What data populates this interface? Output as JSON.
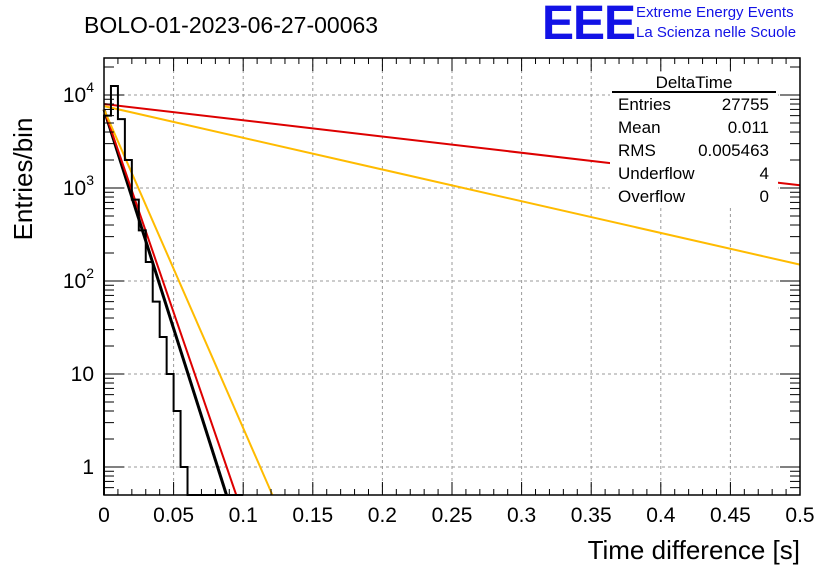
{
  "logo": {
    "mark": "EEE",
    "line1": "Extreme Energy Events",
    "line2": "La Scienza nelle Scuole",
    "color": "#1212e6"
  },
  "chart_data": {
    "type": "line",
    "title": "BOLO-01-2023-06-27-00063",
    "xlabel": "Time difference [s]",
    "ylabel": "Entries/bin",
    "xlim": [
      0,
      0.5
    ],
    "ylim": [
      0.5,
      25000
    ],
    "yscale": "log",
    "grid": true,
    "x_ticks": [
      "0",
      "0.05",
      "0.1",
      "0.15",
      "0.2",
      "0.25",
      "0.3",
      "0.35",
      "0.4",
      "0.45",
      "0.5"
    ],
    "y_ticks": [
      {
        "value": 1,
        "label": "1"
      },
      {
        "value": 10,
        "label": "10"
      },
      {
        "value": 100,
        "base": "10",
        "exp": "2"
      },
      {
        "value": 1000,
        "base": "10",
        "exp": "3"
      },
      {
        "value": 10000,
        "base": "10",
        "exp": "4"
      }
    ],
    "histogram": {
      "name": "DeltaTime",
      "bin_width": 0.005,
      "color": "#000000",
      "counts": [
        6000,
        12500,
        5500,
        2000,
        750,
        350,
        160,
        60,
        25,
        10,
        4,
        1,
        0,
        0,
        0,
        0,
        0,
        0,
        0,
        0
      ]
    },
    "fits": [
      {
        "color": "#000000",
        "x": [
          0.0,
          0.088
        ],
        "y": [
          7000,
          0.5
        ]
      },
      {
        "color": "#dd0000",
        "x": [
          0.0,
          0.095
        ],
        "y": [
          7000,
          0.5
        ]
      },
      {
        "color": "#ffbb00",
        "x": [
          0.0,
          0.121
        ],
        "y": [
          7000,
          0.5
        ]
      },
      {
        "color": "#ffbb00",
        "x": [
          0.0,
          0.5
        ],
        "y": [
          7600,
          150
        ]
      },
      {
        "color": "#dd0000",
        "x": [
          0.0,
          0.5
        ],
        "y": [
          8000,
          1070
        ]
      }
    ],
    "stats": {
      "title": "DeltaTime",
      "rows": [
        {
          "label": "Entries",
          "value": "27755"
        },
        {
          "label": "Mean",
          "value": "0.011"
        },
        {
          "label": "RMS",
          "value": "0.005463"
        },
        {
          "label": "Underflow",
          "value": "4"
        },
        {
          "label": "Overflow",
          "value": "0"
        }
      ]
    }
  }
}
